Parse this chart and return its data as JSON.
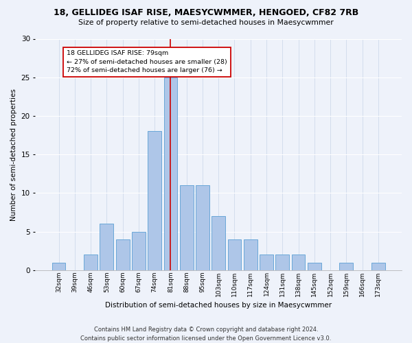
{
  "title1": "18, GELLIDEG ISAF RISE, MAESYCWMMER, HENGOED, CF82 7RB",
  "title2": "Size of property relative to semi-detached houses in Maesycwmmer",
  "xlabel": "Distribution of semi-detached houses by size in Maesycwmmer",
  "ylabel": "Number of semi-detached properties",
  "categories": [
    "32sqm",
    "39sqm",
    "46sqm",
    "53sqm",
    "60sqm",
    "67sqm",
    "74sqm",
    "81sqm",
    "88sqm",
    "95sqm",
    "103sqm",
    "110sqm",
    "117sqm",
    "124sqm",
    "131sqm",
    "138sqm",
    "145sqm",
    "152sqm",
    "159sqm",
    "166sqm",
    "173sqm"
  ],
  "values": [
    1,
    0,
    2,
    6,
    4,
    5,
    18,
    25,
    11,
    11,
    7,
    4,
    4,
    2,
    2,
    2,
    1,
    0,
    1,
    0,
    1
  ],
  "bar_color": "#aec6e8",
  "bar_edge_color": "#5a9fd4",
  "highlight_index": 7,
  "highlight_line_color": "#cc0000",
  "annotation_line1": "18 GELLIDEG ISAF RISE: 79sqm",
  "annotation_line2": "← 27% of semi-detached houses are smaller (28)",
  "annotation_line3": "72% of semi-detached houses are larger (76) →",
  "annotation_box_color": "#ffffff",
  "annotation_box_edge": "#cc0000",
  "ylim": [
    0,
    30
  ],
  "yticks": [
    0,
    5,
    10,
    15,
    20,
    25,
    30
  ],
  "footnote1": "Contains HM Land Registry data © Crown copyright and database right 2024.",
  "footnote2": "Contains public sector information licensed under the Open Government Licence v3.0.",
  "background_color": "#eef2fa",
  "plot_background": "#eef2fa",
  "grid_color_x": "#c8d4e8",
  "grid_color_y": "#ffffff"
}
